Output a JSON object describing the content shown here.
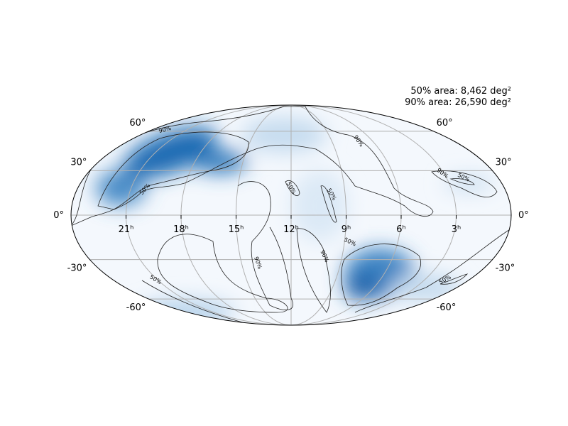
{
  "annotations": {
    "area_50": "50% area: 8,462 deg²",
    "area_90": "90% area: 26,590 deg²"
  },
  "lat_ticks": [
    {
      "value": 60,
      "label": "60°"
    },
    {
      "value": 30,
      "label": "30°"
    },
    {
      "value": 0,
      "label": "0°"
    },
    {
      "value": -30,
      "label": "-30°"
    },
    {
      "value": -60,
      "label": "-60°"
    }
  ],
  "ra_ticks": [
    {
      "value": 21,
      "label": "21ʰ"
    },
    {
      "value": 18,
      "label": "18ʰ"
    },
    {
      "value": 15,
      "label": "15ʰ"
    },
    {
      "value": 12,
      "label": "12ʰ"
    },
    {
      "value": 9,
      "label": "9ʰ"
    },
    {
      "value": 6,
      "label": "6ʰ"
    },
    {
      "value": 3,
      "label": "3ʰ"
    }
  ],
  "contour_labels": [
    "90%",
    "50%",
    "50%",
    "50%",
    "90%",
    "90%",
    "50%",
    "90%",
    "90%",
    "50%",
    "50%",
    "50%"
  ]
}
